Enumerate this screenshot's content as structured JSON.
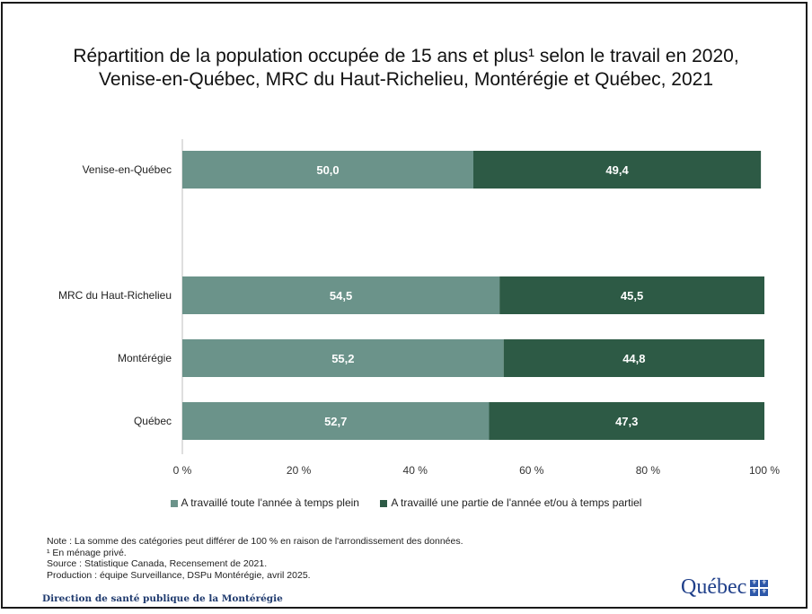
{
  "chart_data": {
    "type": "bar",
    "orientation": "horizontal",
    "stacked": true,
    "title_line1": "Répartition de la population occupée de 15 ans et plus¹ selon le travail en 2020,",
    "title_line2": "Venise-en-Québec, MRC du Haut-Richelieu, Montérégie et Québec, 2021",
    "categories": [
      "Venise-en-Québec",
      "MRC du Haut-Richelieu",
      "Montérégie",
      "Québec"
    ],
    "series": [
      {
        "name": "A travaillé toute l'année à temps plein",
        "values": [
          50.0,
          54.5,
          55.2,
          52.7
        ],
        "labels": [
          "50,0",
          "54,5",
          "55,2",
          "52,7"
        ],
        "color": "#6b938a"
      },
      {
        "name": "A travaillé une partie de l'année et/ou à temps partiel",
        "values": [
          49.4,
          45.5,
          44.8,
          47.3
        ],
        "labels": [
          "49,4",
          "45,5",
          "44,8",
          "47,3"
        ],
        "color": "#2d5a45"
      }
    ],
    "x_ticks": [
      "0 %",
      "20 %",
      "40 %",
      "60 %",
      "80 %",
      "100 %"
    ],
    "xlim": [
      0,
      100
    ],
    "legend_position": "bottom",
    "grid": false
  },
  "notes": {
    "note": "Note : La somme des catégories peut différer de 100 % en raison de l'arrondissement des données.",
    "footnote": "¹ En ménage privé.",
    "source": "Source : Statistique Canada, Recensement de 2021.",
    "production": "Production : équipe Surveillance, DSPu Montérégie, avril 2025."
  },
  "footer": "Direction de santé publique de la Montérégie",
  "logo": {
    "text": "Québec",
    "flag_glyph": "⚜"
  }
}
